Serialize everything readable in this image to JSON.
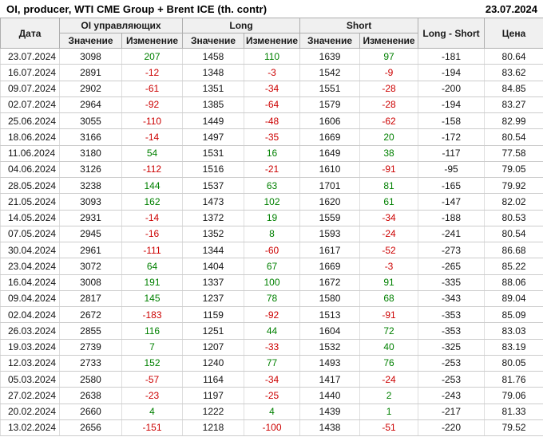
{
  "title": "OI, producer, WTI CME Group + Brent ICE (th. contr)",
  "report_date": "23.07.2024",
  "colors": {
    "positive": "#008000",
    "negative": "#cc0000",
    "header_bg": "#f0f0f0"
  },
  "chart_data": {
    "type": "table",
    "title": "OI, producer, WTI CME Group + Brent ICE (th. contr)",
    "group_headers": {
      "date": "Дата",
      "oi": "OI управляющих",
      "long": "Long",
      "short": "Short",
      "long_short": "Long - Short",
      "price": "Цена"
    },
    "sub_headers": {
      "value": "Значение",
      "change": "Изменение"
    },
    "columns": [
      "Дата",
      "OI Значение",
      "OI Изменение",
      "Long Значение",
      "Long Изменение",
      "Short Значение",
      "Short Изменение",
      "Long - Short",
      "Цена"
    ],
    "rows": [
      [
        "23.07.2024",
        3098,
        207,
        1458,
        110,
        1639,
        97,
        -181,
        "80.64"
      ],
      [
        "16.07.2024",
        2891,
        -12,
        1348,
        -3,
        1542,
        -9,
        -194,
        "83.62"
      ],
      [
        "09.07.2024",
        2902,
        -61,
        1351,
        -34,
        1551,
        -28,
        -200,
        "84.85"
      ],
      [
        "02.07.2024",
        2964,
        -92,
        1385,
        -64,
        1579,
        -28,
        -194,
        "83.27"
      ],
      [
        "25.06.2024",
        3055,
        -110,
        1449,
        -48,
        1606,
        -62,
        -158,
        "82.99"
      ],
      [
        "18.06.2024",
        3166,
        -14,
        1497,
        -35,
        1669,
        20,
        -172,
        "80.54"
      ],
      [
        "11.06.2024",
        3180,
        54,
        1531,
        16,
        1649,
        38,
        -117,
        "77.58"
      ],
      [
        "04.06.2024",
        3126,
        -112,
        1516,
        -21,
        1610,
        -91,
        -95,
        "79.05"
      ],
      [
        "28.05.2024",
        3238,
        144,
        1537,
        63,
        1701,
        81,
        -165,
        "79.92"
      ],
      [
        "21.05.2024",
        3093,
        162,
        1473,
        102,
        1620,
        61,
        -147,
        "82.02"
      ],
      [
        "14.05.2024",
        2931,
        -14,
        1372,
        19,
        1559,
        -34,
        -188,
        "80.53"
      ],
      [
        "07.05.2024",
        2945,
        -16,
        1352,
        8,
        1593,
        -24,
        -241,
        "80.54"
      ],
      [
        "30.04.2024",
        2961,
        -111,
        1344,
        -60,
        1617,
        -52,
        -273,
        "86.68"
      ],
      [
        "23.04.2024",
        3072,
        64,
        1404,
        67,
        1669,
        -3,
        -265,
        "85.22"
      ],
      [
        "16.04.2024",
        3008,
        191,
        1337,
        100,
        1672,
        91,
        -335,
        "88.06"
      ],
      [
        "09.04.2024",
        2817,
        145,
        1237,
        78,
        1580,
        68,
        -343,
        "89.04"
      ],
      [
        "02.04.2024",
        2672,
        -183,
        1159,
        -92,
        1513,
        -91,
        -353,
        "85.09"
      ],
      [
        "26.03.2024",
        2855,
        116,
        1251,
        44,
        1604,
        72,
        -353,
        "83.03"
      ],
      [
        "19.03.2024",
        2739,
        7,
        1207,
        -33,
        1532,
        40,
        -325,
        "83.19"
      ],
      [
        "12.03.2024",
        2733,
        152,
        1240,
        77,
        1493,
        76,
        -253,
        "80.05"
      ],
      [
        "05.03.2024",
        2580,
        -57,
        1164,
        -34,
        1417,
        -24,
        -253,
        "81.76"
      ],
      [
        "27.02.2024",
        2638,
        -23,
        1197,
        -25,
        1440,
        2,
        -243,
        "79.06"
      ],
      [
        "20.02.2024",
        2660,
        4,
        1222,
        4,
        1439,
        1,
        -217,
        "81.33"
      ],
      [
        "13.02.2024",
        2656,
        -151,
        1218,
        -100,
        1438,
        -51,
        -220,
        "79.52"
      ]
    ]
  }
}
